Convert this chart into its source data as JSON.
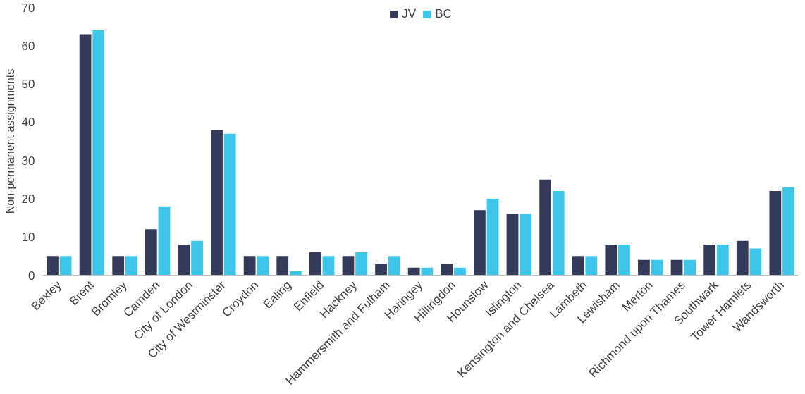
{
  "chart_data": {
    "type": "bar",
    "ylabel": "Non-permanent assignments",
    "categories": [
      "Bexley",
      "Brent",
      "Bromley",
      "Camden",
      "City of London",
      "City of Westminster",
      "Croydon",
      "Ealing",
      "Enfield",
      "Hackney",
      "Hammersmith and Fulham",
      "Haringey",
      "Hillingdon",
      "Hounslow",
      "Islington",
      "Kensington and Chelsea",
      "Lambeth",
      "Lewisham",
      "Merton",
      "Richmond upon Thames",
      "Southwark",
      "Tower Hamlets",
      "Wandsworth"
    ],
    "series": [
      {
        "name": "JV",
        "color": "#343a5a",
        "values": [
          5,
          63,
          5,
          12,
          8,
          38,
          5,
          5,
          6,
          5,
          3,
          2,
          3,
          17,
          16,
          25,
          5,
          8,
          4,
          4,
          8,
          9,
          22
        ]
      },
      {
        "name": "BC",
        "color": "#3ec6ea",
        "values": [
          5,
          64,
          5,
          18,
          9,
          37,
          5,
          1,
          5,
          6,
          5,
          2,
          2,
          20,
          16,
          22,
          5,
          8,
          4,
          4,
          8,
          7,
          23
        ]
      }
    ],
    "ylim": [
      0,
      70
    ],
    "yticks": [
      0,
      10,
      20,
      30,
      40,
      50,
      60,
      70
    ],
    "grid": false,
    "legend": "top"
  }
}
